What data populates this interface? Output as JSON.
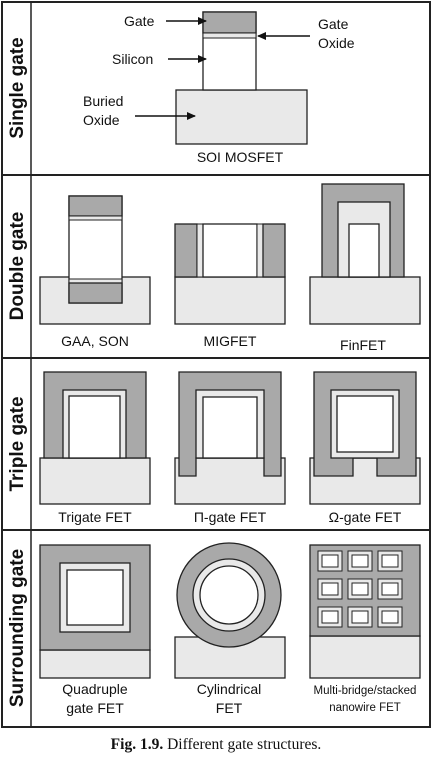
{
  "rows": [
    {
      "title": "Single gate",
      "labels": [
        "SOI MOSFET"
      ]
    },
    {
      "title": "Double gate",
      "labels": [
        "GAA, SON",
        "MIGFET",
        "FinFET"
      ]
    },
    {
      "title": "Triple gate",
      "labels": [
        "Trigate FET",
        "Π-gate FET",
        "Ω-gate FET"
      ]
    },
    {
      "title": "Surrounding gate",
      "labels": [
        "Quadruple",
        "gate FET",
        "Cylindrical",
        "FET",
        "Multi-bridge/stacked",
        "nanowire FET"
      ]
    }
  ],
  "callouts": {
    "gate": "Gate",
    "gate_oxide_1": "Gate",
    "gate_oxide_2": "Oxide",
    "silicon": "Silicon",
    "buried_1": "Buried",
    "buried_2": "Oxide"
  },
  "caption": {
    "number": "Fig. 1.9.",
    "text": "Different gate structures."
  },
  "colors": {
    "gate": "#a9a9a9",
    "oxide": "#e9e9e9",
    "silicon": "#ffffff",
    "line": "#222222"
  }
}
